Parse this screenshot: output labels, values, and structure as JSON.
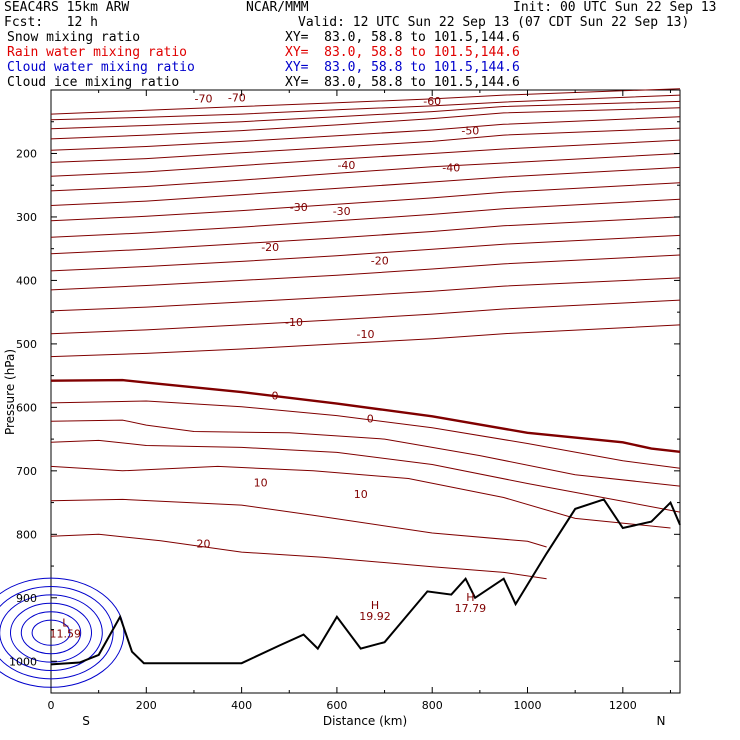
{
  "header": {
    "model": "SEAC4RS 15km ARW",
    "center": "NCAR/MMM",
    "init": "Init: 00 UTC Sun 22 Sep 13",
    "fcst": "Fcst:   12 h",
    "valid": "Valid: 12 UTC Sun 22 Sep 13 (07 CDT Sun 22 Sep 13)"
  },
  "legend": [
    {
      "label": "Snow mixing ratio",
      "xy": "XY=  83.0, 58.8 to 101.5,144.6",
      "color": "#000000"
    },
    {
      "label": "Rain water mixing ratio",
      "xy": "XY=  83.0, 58.8 to 101.5,144.6",
      "color": "#e00000"
    },
    {
      "label": "Cloud water mixing ratio",
      "xy": "XY=  83.0, 58.8 to 101.5,144.6",
      "color": "#0000cc"
    },
    {
      "label": "Cloud ice mixing ratio",
      "xy": "XY=  83.0, 58.8 to 101.5,144.6",
      "color": "#000000"
    }
  ],
  "chart_data": {
    "type": "line",
    "xlabel": "Distance (km)",
    "ylabel": "Pressure (hPa)",
    "xlim": [
      0,
      1320
    ],
    "ylim": [
      1050,
      100
    ],
    "x_ticks": [
      0,
      200,
      400,
      600,
      800,
      1000,
      1200
    ],
    "y_ticks": [
      200,
      300,
      400,
      500,
      600,
      700,
      800,
      900,
      1000
    ],
    "y_tick_labels": [
      "200",
      "300",
      "400",
      "500",
      "600",
      "700",
      "800",
      "900",
      "1000"
    ],
    "x_tick_labels": [
      "0",
      "200",
      "400",
      "600",
      "800",
      "1000",
      "1200"
    ],
    "left_end": "S",
    "right_end": "N",
    "isotherm_color": "#800000",
    "terrain_color": "#000000",
    "cloud_color": "#0000cc",
    "isotherms": [
      {
        "temp": -70,
        "points": [
          [
            0,
            138
          ],
          [
            200,
            132
          ],
          [
            400,
            126
          ],
          [
            600,
            120
          ],
          [
            800,
            114
          ],
          [
            950,
            108
          ],
          [
            1320,
            98
          ]
        ]
      },
      {
        "temp": -70,
        "points": [
          [
            0,
            147
          ],
          [
            200,
            143
          ],
          [
            400,
            138
          ],
          [
            600,
            131
          ],
          [
            800,
            125
          ],
          [
            950,
            119
          ],
          [
            1320,
            108
          ]
        ]
      },
      {
        "temp": -60,
        "points": [
          [
            0,
            161
          ],
          [
            200,
            156
          ],
          [
            400,
            150
          ],
          [
            600,
            142
          ],
          [
            800,
            134
          ],
          [
            950,
            126
          ],
          [
            1320,
            118
          ]
        ]
      },
      {
        "temp": -60,
        "points": [
          [
            0,
            177
          ],
          [
            200,
            171
          ],
          [
            400,
            164
          ],
          [
            600,
            155
          ],
          [
            800,
            145
          ],
          [
            950,
            136
          ],
          [
            1320,
            128
          ]
        ]
      },
      {
        "temp": -50,
        "points": [
          [
            0,
            195
          ],
          [
            200,
            189
          ],
          [
            400,
            181
          ],
          [
            600,
            172
          ],
          [
            800,
            163
          ],
          [
            950,
            154
          ],
          [
            1320,
            142
          ]
        ]
      },
      {
        "temp": -50,
        "points": [
          [
            0,
            214
          ],
          [
            200,
            208
          ],
          [
            400,
            199
          ],
          [
            600,
            190
          ],
          [
            800,
            181
          ],
          [
            950,
            171
          ],
          [
            1320,
            160
          ]
        ]
      },
      {
        "temp": -40,
        "points": [
          [
            0,
            236
          ],
          [
            200,
            229
          ],
          [
            400,
            219
          ],
          [
            600,
            209
          ],
          [
            800,
            200
          ],
          [
            950,
            193
          ],
          [
            1320,
            179
          ]
        ]
      },
      {
        "temp": -40,
        "points": [
          [
            0,
            259
          ],
          [
            200,
            252
          ],
          [
            400,
            242
          ],
          [
            600,
            231
          ],
          [
            800,
            221
          ],
          [
            950,
            215
          ],
          [
            1320,
            200
          ]
        ]
      },
      {
        "temp": -30,
        "points": [
          [
            0,
            282
          ],
          [
            200,
            275
          ],
          [
            400,
            265
          ],
          [
            600,
            255
          ],
          [
            800,
            245
          ],
          [
            950,
            237
          ],
          [
            1320,
            222
          ]
        ]
      },
      {
        "temp": -30,
        "points": [
          [
            0,
            306
          ],
          [
            200,
            299
          ],
          [
            400,
            290
          ],
          [
            600,
            280
          ],
          [
            800,
            270
          ],
          [
            950,
            261
          ],
          [
            1320,
            246
          ]
        ]
      },
      {
        "temp": -20,
        "points": [
          [
            0,
            332
          ],
          [
            200,
            325
          ],
          [
            400,
            316
          ],
          [
            600,
            306
          ],
          [
            800,
            296
          ],
          [
            950,
            287
          ],
          [
            1320,
            272
          ]
        ]
      },
      {
        "temp": -20,
        "points": [
          [
            0,
            358
          ],
          [
            200,
            351
          ],
          [
            400,
            342
          ],
          [
            600,
            333
          ],
          [
            800,
            323
          ],
          [
            950,
            314
          ],
          [
            1320,
            300
          ]
        ]
      },
      {
        "temp": -10,
        "points": [
          [
            0,
            385
          ],
          [
            200,
            378
          ],
          [
            400,
            370
          ],
          [
            600,
            361
          ],
          [
            800,
            351
          ],
          [
            950,
            343
          ],
          [
            1320,
            329
          ]
        ]
      },
      {
        "temp": -10,
        "points": [
          [
            0,
            415
          ],
          [
            200,
            408
          ],
          [
            400,
            400
          ],
          [
            600,
            392
          ],
          [
            800,
            382
          ],
          [
            950,
            374
          ],
          [
            1320,
            360
          ]
        ]
      },
      {
        "temp": -10,
        "points": [
          [
            0,
            448
          ],
          [
            200,
            442
          ],
          [
            400,
            434
          ],
          [
            600,
            426
          ],
          [
            800,
            417
          ],
          [
            950,
            409
          ],
          [
            1320,
            396
          ]
        ]
      },
      {
        "temp": -10,
        "points": [
          [
            0,
            484
          ],
          [
            200,
            478
          ],
          [
            400,
            470
          ],
          [
            600,
            462
          ],
          [
            800,
            453
          ],
          [
            950,
            445
          ],
          [
            1320,
            431
          ]
        ]
      },
      {
        "temp": -10,
        "points": [
          [
            0,
            520
          ],
          [
            200,
            515
          ],
          [
            400,
            508
          ],
          [
            600,
            500
          ],
          [
            800,
            492
          ],
          [
            950,
            484
          ],
          [
            1320,
            470
          ]
        ]
      },
      {
        "temp": 0,
        "points": [
          [
            0,
            558
          ],
          [
            150,
            557
          ],
          [
            200,
            561
          ],
          [
            400,
            576
          ],
          [
            600,
            594
          ],
          [
            800,
            614
          ],
          [
            1000,
            640
          ],
          [
            1200,
            655
          ],
          [
            1260,
            665
          ],
          [
            1320,
            670
          ]
        ]
      },
      {
        "temp": 10,
        "points": [
          [
            0,
            593
          ],
          [
            200,
            590
          ],
          [
            400,
            599
          ],
          [
            600,
            613
          ],
          [
            800,
            632
          ],
          [
            1000,
            657
          ],
          [
            1200,
            684
          ],
          [
            1320,
            696
          ]
        ]
      },
      {
        "temp": 10,
        "points": [
          [
            0,
            622
          ],
          [
            150,
            620
          ],
          [
            200,
            628
          ],
          [
            300,
            638
          ],
          [
            500,
            640
          ],
          [
            700,
            650
          ],
          [
            900,
            676
          ],
          [
            1100,
            706
          ],
          [
            1320,
            724
          ]
        ]
      },
      {
        "temp": 10,
        "points": [
          [
            0,
            655
          ],
          [
            100,
            652
          ],
          [
            200,
            660
          ],
          [
            400,
            663
          ],
          [
            600,
            671
          ],
          [
            800,
            690
          ],
          [
            1000,
            720
          ],
          [
            1200,
            748
          ],
          [
            1320,
            765
          ]
        ]
      },
      {
        "temp": 10,
        "points": [
          [
            0,
            693
          ],
          [
            150,
            700
          ],
          [
            350,
            693
          ],
          [
            550,
            700
          ],
          [
            750,
            712
          ],
          [
            950,
            742
          ],
          [
            1100,
            775
          ],
          [
            1300,
            790
          ]
        ]
      },
      {
        "temp": 20,
        "points": [
          [
            0,
            747
          ],
          [
            150,
            745
          ],
          [
            230,
            748
          ],
          [
            400,
            754
          ],
          [
            550,
            770
          ],
          [
            800,
            798
          ],
          [
            1000,
            811
          ],
          [
            1040,
            820
          ]
        ]
      },
      {
        "temp": 20,
        "points": [
          [
            0,
            803
          ],
          [
            100,
            800
          ],
          [
            230,
            810
          ],
          [
            400,
            828
          ],
          [
            570,
            836
          ],
          [
            800,
            851
          ],
          [
            950,
            860
          ],
          [
            1040,
            870
          ]
        ]
      }
    ],
    "terrain": [
      [
        0,
        1005
      ],
      [
        60,
        1002
      ],
      [
        100,
        990
      ],
      [
        145,
        930
      ],
      [
        170,
        985
      ],
      [
        195,
        1003
      ],
      [
        400,
        1003
      ],
      [
        480,
        975
      ],
      [
        530,
        958
      ],
      [
        560,
        980
      ],
      [
        600,
        930
      ],
      [
        650,
        980
      ],
      [
        700,
        970
      ],
      [
        790,
        890
      ],
      [
        840,
        895
      ],
      [
        870,
        870
      ],
      [
        890,
        900
      ],
      [
        950,
        870
      ],
      [
        975,
        910
      ],
      [
        1040,
        830
      ],
      [
        1100,
        760
      ],
      [
        1160,
        745
      ],
      [
        1200,
        790
      ],
      [
        1260,
        780
      ],
      [
        1300,
        750
      ],
      [
        1320,
        785
      ]
    ],
    "extrema": [
      {
        "type": "L",
        "value": "11.59",
        "x": 30,
        "y": 945
      },
      {
        "type": "H",
        "value": "19.92",
        "x": 680,
        "y": 918
      },
      {
        "type": "H",
        "value": "17.79",
        "x": 880,
        "y": 905
      }
    ],
    "labels": [
      {
        "text": "-70",
        "x": 320,
        "y": 115
      },
      {
        "text": "-70",
        "x": 390,
        "y": 113
      },
      {
        "text": "-60",
        "x": 800,
        "y": 119
      },
      {
        "text": "-50",
        "x": 880,
        "y": 165
      },
      {
        "text": "-40",
        "x": 620,
        "y": 220
      },
      {
        "text": "-40",
        "x": 840,
        "y": 224
      },
      {
        "text": "-30",
        "x": 520,
        "y": 286
      },
      {
        "text": "-30",
        "x": 610,
        "y": 292
      },
      {
        "text": "-20",
        "x": 460,
        "y": 349
      },
      {
        "text": "-20",
        "x": 690,
        "y": 370
      },
      {
        "text": "-10",
        "x": 510,
        "y": 467
      },
      {
        "text": "-10",
        "x": 660,
        "y": 486
      },
      {
        "text": "0",
        "x": 470,
        "y": 583
      },
      {
        "text": "0",
        "x": 670,
        "y": 619
      },
      {
        "text": "10",
        "x": 440,
        "y": 720
      },
      {
        "text": "10",
        "x": 650,
        "y": 738
      },
      {
        "text": "20",
        "x": 320,
        "y": 816
      }
    ]
  }
}
